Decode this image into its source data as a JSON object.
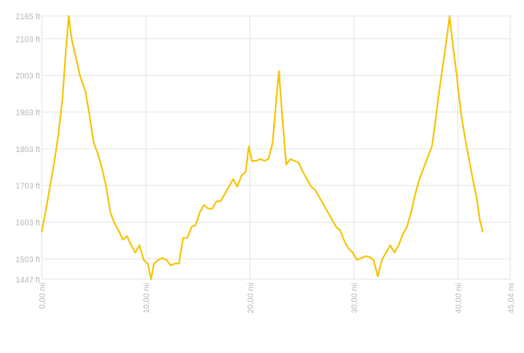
{
  "chart_data": {
    "type": "line",
    "title": "",
    "xlabel": "",
    "ylabel": "",
    "xlim": [
      0,
      45.04
    ],
    "ylim": [
      1447,
      2165
    ],
    "x_ticks": [
      0,
      10,
      20,
      30,
      40,
      45.04
    ],
    "x_tick_labels": [
      "0,00 mi",
      "10,00 mi",
      "20,00 mi",
      "30,00 mi",
      "40,00 mi",
      "45,04 mi"
    ],
    "y_ticks": [
      1447,
      1503,
      1603,
      1703,
      1803,
      1903,
      2003,
      2103,
      2165
    ],
    "y_tick_labels": [
      "1447 ft",
      "1503 ft",
      "1603 ft",
      "1703 ft",
      "1803 ft",
      "1903 ft",
      "2003 ft",
      "2103 ft",
      "2165 ft"
    ],
    "grid": true,
    "line_color": "#f5c400",
    "series": [
      {
        "name": "",
        "points": [
          [
            0.0,
            1575
          ],
          [
            0.4,
            1635
          ],
          [
            0.8,
            1700
          ],
          [
            1.2,
            1765
          ],
          [
            1.6,
            1840
          ],
          [
            2.0,
            1940
          ],
          [
            2.3,
            2060
          ],
          [
            2.6,
            2165
          ],
          [
            2.9,
            2100
          ],
          [
            3.3,
            2050
          ],
          [
            3.7,
            2000
          ],
          [
            4.2,
            1960
          ],
          [
            4.6,
            1895
          ],
          [
            5.0,
            1820
          ],
          [
            5.4,
            1790
          ],
          [
            5.8,
            1750
          ],
          [
            6.2,
            1700
          ],
          [
            6.6,
            1630
          ],
          [
            7.0,
            1600
          ],
          [
            7.4,
            1580
          ],
          [
            7.8,
            1555
          ],
          [
            8.2,
            1565
          ],
          [
            8.6,
            1540
          ],
          [
            9.0,
            1520
          ],
          [
            9.4,
            1540
          ],
          [
            9.8,
            1500
          ],
          [
            10.2,
            1490
          ],
          [
            10.5,
            1447
          ],
          [
            10.8,
            1490
          ],
          [
            11.2,
            1500
          ],
          [
            11.6,
            1505
          ],
          [
            12.0,
            1500
          ],
          [
            12.4,
            1485
          ],
          [
            12.8,
            1490
          ],
          [
            13.2,
            1490
          ],
          [
            13.6,
            1560
          ],
          [
            14.0,
            1560
          ],
          [
            14.4,
            1590
          ],
          [
            14.8,
            1595
          ],
          [
            15.2,
            1630
          ],
          [
            15.6,
            1650
          ],
          [
            16.0,
            1640
          ],
          [
            16.4,
            1640
          ],
          [
            16.8,
            1660
          ],
          [
            17.2,
            1660
          ],
          [
            17.6,
            1680
          ],
          [
            18.0,
            1700
          ],
          [
            18.4,
            1720
          ],
          [
            18.8,
            1700
          ],
          [
            19.2,
            1730
          ],
          [
            19.6,
            1740
          ],
          [
            19.9,
            1810
          ],
          [
            20.2,
            1770
          ],
          [
            20.6,
            1770
          ],
          [
            21.0,
            1775
          ],
          [
            21.4,
            1770
          ],
          [
            21.8,
            1775
          ],
          [
            22.2,
            1820
          ],
          [
            22.5,
            1920
          ],
          [
            22.8,
            2015
          ],
          [
            23.1,
            1900
          ],
          [
            23.5,
            1760
          ],
          [
            23.9,
            1775
          ],
          [
            24.3,
            1770
          ],
          [
            24.7,
            1765
          ],
          [
            25.1,
            1740
          ],
          [
            25.5,
            1720
          ],
          [
            25.9,
            1700
          ],
          [
            26.3,
            1690
          ],
          [
            26.7,
            1670
          ],
          [
            27.1,
            1650
          ],
          [
            27.5,
            1630
          ],
          [
            27.9,
            1610
          ],
          [
            28.3,
            1590
          ],
          [
            28.7,
            1580
          ],
          [
            29.1,
            1550
          ],
          [
            29.5,
            1530
          ],
          [
            29.9,
            1520
          ],
          [
            30.3,
            1500
          ],
          [
            30.7,
            1505
          ],
          [
            31.1,
            1510
          ],
          [
            31.5,
            1508
          ],
          [
            31.9,
            1500
          ],
          [
            32.3,
            1455
          ],
          [
            32.7,
            1500
          ],
          [
            33.1,
            1520
          ],
          [
            33.5,
            1540
          ],
          [
            33.9,
            1520
          ],
          [
            34.3,
            1540
          ],
          [
            34.7,
            1570
          ],
          [
            35.1,
            1590
          ],
          [
            35.5,
            1630
          ],
          [
            35.9,
            1680
          ],
          [
            36.3,
            1720
          ],
          [
            36.7,
            1750
          ],
          [
            37.1,
            1780
          ],
          [
            37.5,
            1810
          ],
          [
            37.8,
            1870
          ],
          [
            38.1,
            1940
          ],
          [
            38.4,
            2000
          ],
          [
            38.7,
            2060
          ],
          [
            39.0,
            2120
          ],
          [
            39.2,
            2165
          ],
          [
            39.5,
            2090
          ],
          [
            39.9,
            2000
          ],
          [
            40.3,
            1900
          ],
          [
            40.7,
            1830
          ],
          [
            41.1,
            1770
          ],
          [
            41.5,
            1710
          ],
          [
            41.8,
            1670
          ],
          [
            42.1,
            1610
          ],
          [
            42.4,
            1575
          ]
        ]
      }
    ]
  }
}
